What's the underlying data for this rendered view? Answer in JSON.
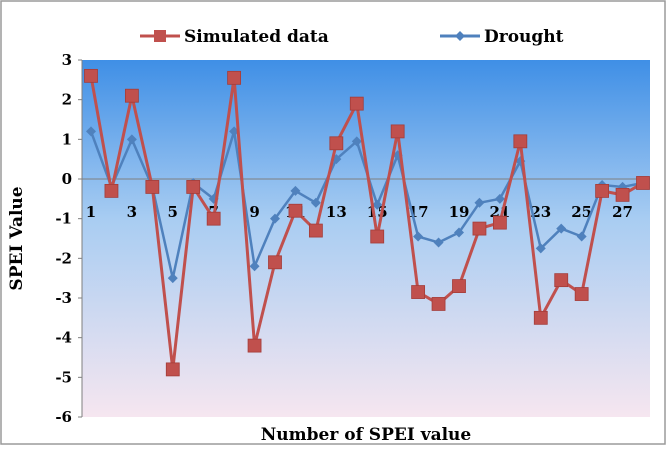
{
  "chart_data": {
    "type": "line",
    "title": "",
    "xlabel": "Number of  SPEI value",
    "ylabel": "SPEI Value",
    "ylim": [
      -6,
      3
    ],
    "yticks": [
      -6,
      -5,
      -4,
      -3,
      -2,
      -1,
      0,
      1,
      2,
      3
    ],
    "x": [
      1,
      2,
      3,
      4,
      5,
      6,
      7,
      8,
      9,
      10,
      11,
      12,
      13,
      14,
      15,
      16,
      17,
      18,
      19,
      20,
      21,
      22,
      23,
      24,
      25,
      26,
      27,
      28
    ],
    "xtick_labels": [
      "1",
      "3",
      "5",
      "7",
      "9",
      "11",
      "13",
      "15",
      "17",
      "19",
      "21",
      "23",
      "25",
      "27"
    ],
    "xtick_positions": [
      1,
      3,
      5,
      7,
      9,
      11,
      13,
      15,
      17,
      19,
      21,
      23,
      25,
      27
    ],
    "legend_position": "top",
    "grid": false,
    "series": [
      {
        "name": "Simulated data",
        "color": "#c0504d",
        "marker": "square",
        "values": [
          2.6,
          -0.3,
          2.1,
          -0.2,
          -4.8,
          -0.2,
          -1.0,
          2.55,
          -4.2,
          -2.1,
          -0.8,
          -1.3,
          0.9,
          1.9,
          -1.45,
          1.2,
          -2.85,
          -3.15,
          -2.7,
          -1.25,
          -1.1,
          0.95,
          -3.5,
          -2.55,
          -2.9,
          -0.3,
          -0.4,
          -0.1
        ]
      },
      {
        "name": "Drought",
        "color": "#4f81bd",
        "marker": "diamond",
        "values": [
          1.2,
          -0.2,
          1.0,
          -0.2,
          -2.5,
          -0.1,
          -0.5,
          1.2,
          -2.2,
          -1.0,
          -0.3,
          -0.6,
          0.5,
          0.95,
          -0.65,
          0.6,
          -1.45,
          -1.6,
          -1.35,
          -0.6,
          -0.5,
          0.45,
          -1.75,
          -1.25,
          -1.45,
          -0.15,
          -0.2,
          -0.1
        ]
      }
    ]
  }
}
